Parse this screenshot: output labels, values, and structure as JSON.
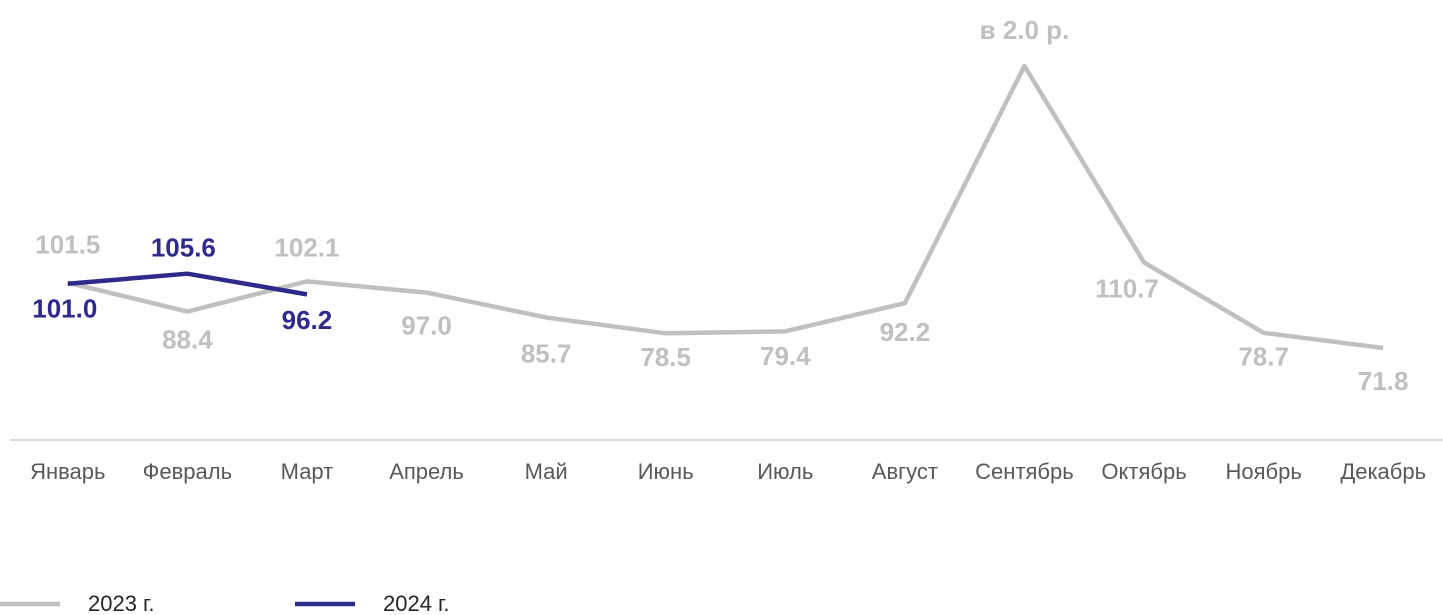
{
  "chart_data": {
    "type": "line",
    "categories": [
      "Январь",
      "Февраль",
      "Март",
      "Апрель",
      "Май",
      "Июнь",
      "Июль",
      "Август",
      "Сентябрь",
      "Октябрь",
      "Ноябрь",
      "Декабрь"
    ],
    "series": [
      {
        "name": "2023 г.",
        "color": "#c0c0c0",
        "values": [
          101.5,
          88.4,
          102.1,
          97.0,
          85.7,
          78.5,
          79.4,
          92.2,
          200,
          110.7,
          78.7,
          71.8
        ],
        "value_labels": [
          "101.5",
          "88.4",
          "102.1",
          "97.0",
          "85.7",
          "78.5",
          "79.4",
          "92.2",
          "в 2.0 р.",
          "110.7",
          "78.7",
          "71.8"
        ]
      },
      {
        "name": "2024 г.",
        "color": "#2e2a8a",
        "values": [
          101.0,
          105.6,
          96.2,
          null,
          null,
          null,
          null,
          null,
          null,
          null,
          null,
          null
        ],
        "value_labels": [
          "101.0",
          "105.6",
          "96.2",
          null,
          null,
          null,
          null,
          null,
          null,
          null,
          null,
          null
        ]
      }
    ],
    "ylim": [
      30,
      220
    ]
  }
}
